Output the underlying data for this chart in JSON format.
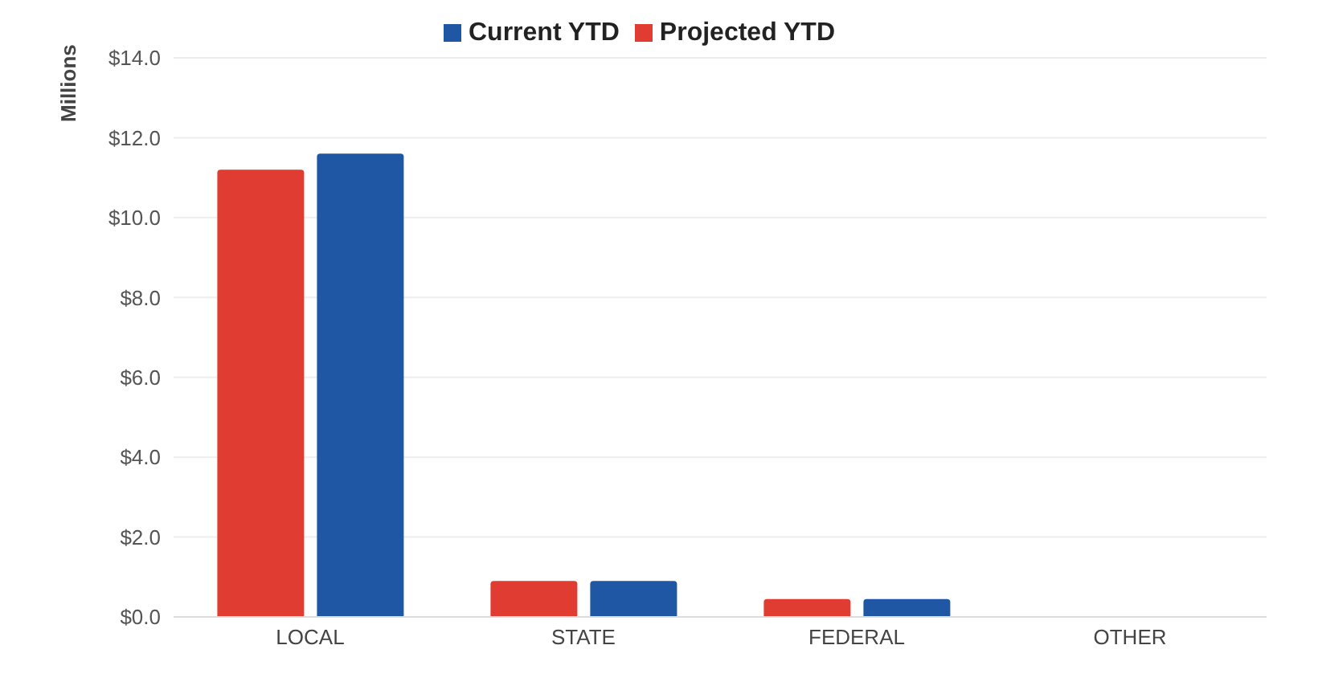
{
  "chart_data": {
    "type": "bar",
    "ylabel": "Millions",
    "categories": [
      "LOCAL",
      "STATE",
      "FEDERAL",
      "OTHER"
    ],
    "series": [
      {
        "name": "Projected YTD",
        "color": "#e03c31",
        "values": [
          11.2,
          0.9,
          0.45,
          0
        ]
      },
      {
        "name": "Current YTD",
        "color": "#1f57a4",
        "values": [
          11.6,
          0.9,
          0.45,
          0
        ]
      }
    ],
    "ylim": [
      0,
      14
    ],
    "yticks": [
      {
        "value": 0,
        "label": "$0.0"
      },
      {
        "value": 2,
        "label": "$2.0"
      },
      {
        "value": 4,
        "label": "$4.0"
      },
      {
        "value": 6,
        "label": "$6.0"
      },
      {
        "value": 8,
        "label": "$8.0"
      },
      {
        "value": 10,
        "label": "$10.0"
      },
      {
        "value": 12,
        "label": "$12.0"
      },
      {
        "value": 14,
        "label": "$14.0"
      }
    ],
    "grid": "y",
    "legend": "top"
  }
}
